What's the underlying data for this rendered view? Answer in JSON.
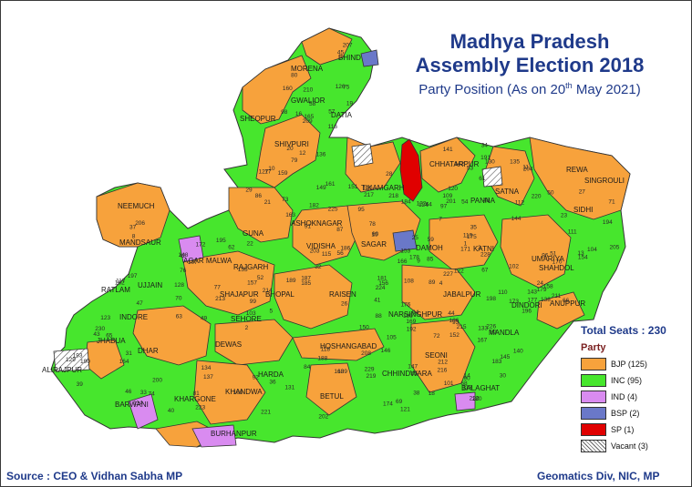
{
  "title": [
    "Madhya Pradesh",
    "Assembly Election 2018"
  ],
  "subtitle_prefix": "Party Position (As on 20",
  "subtitle_sup": "th",
  "subtitle_suffix": " May 2021)",
  "legend": {
    "total": "Total Seats : 230",
    "heading": "Party",
    "items": [
      {
        "label": "BJP (125)",
        "color": "#f7a23c",
        "pattern": false
      },
      {
        "label": "INC (95)",
        "color": "#47e62d",
        "pattern": false
      },
      {
        "label": "IND (4)",
        "color": "#d98bf0",
        "pattern": false
      },
      {
        "label": "BSP (2)",
        "color": "#6a78c8",
        "pattern": false
      },
      {
        "label": "SP  (1)",
        "color": "#e00000",
        "pattern": false
      },
      {
        "label": "Vacant (3)",
        "color": "#ffffff",
        "pattern": true
      }
    ]
  },
  "source": "Source : CEO & Vidhan Sabha MP",
  "credit": "Geomatics Div, NIC, MP",
  "districts": [
    "MORENA",
    "BHIND",
    "GWALIOR",
    "DATIA",
    "SHEOPUR",
    "SHIVPURI",
    "TIKAMGARH",
    "CHHATARPUR",
    "PANNA",
    "SATNA",
    "REWA",
    "SIDHI",
    "SINGROULI",
    "NEEMUCH",
    "MANDSAUR",
    "GUNA",
    "ASHOKNAGAR",
    "VIDISHA",
    "SAGAR",
    "DAMOH",
    "KATNI",
    "UMARIYA",
    "SHAHDOL",
    "ANUPPUR",
    "AGAR MALWA",
    "RAJGARH",
    "RATLAM",
    "UJJAIN",
    "SHAJAPUR",
    "BHOPAL",
    "RAISEN",
    "JABALPUR",
    "DINDORI",
    "JHABUA",
    "INDORE",
    "SEHORE",
    "NARSINGHPUR",
    "MANDLA",
    "DHAR",
    "DEWAS",
    "HOSHANGABAD",
    "SEONI",
    "ALIRAJPUR",
    "HARDA",
    "CHHINDWARA",
    "BALAGHAT",
    "BARWANI",
    "KHARGONE",
    "KHANDWA",
    "BETUL",
    "BURHANPUR"
  ],
  "map_numbers": [
    "1",
    "2",
    "3",
    "4",
    "5",
    "7",
    "8",
    "9",
    "10",
    "11",
    "12",
    "13",
    "14",
    "15",
    "16",
    "17",
    "18",
    "19",
    "20",
    "21",
    "22",
    "23",
    "24",
    "25",
    "26",
    "27",
    "28",
    "29",
    "30",
    "31",
    "32",
    "33",
    "34",
    "35",
    "36",
    "37",
    "38",
    "39",
    "40",
    "41",
    "42",
    "43",
    "44",
    "45",
    "46",
    "47",
    "48",
    "49",
    "50",
    "51",
    "52",
    "53",
    "54",
    "55",
    "56",
    "57",
    "58",
    "59",
    "60",
    "61",
    "62",
    "63",
    "64",
    "65",
    "66",
    "67",
    "68",
    "69",
    "70",
    "71",
    "72",
    "73",
    "74",
    "75",
    "76",
    "77",
    "78",
    "79",
    "80",
    "81",
    "82",
    "84",
    "85",
    "86",
    "87",
    "88",
    "89",
    "90",
    "91",
    "92",
    "93",
    "94",
    "95",
    "96",
    "97",
    "98",
    "99",
    "100",
    "101",
    "102",
    "103",
    "104",
    "105",
    "106",
    "107",
    "108",
    "109",
    "110",
    "111",
    "112",
    "113",
    "114",
    "115",
    "116",
    "117",
    "118",
    "119",
    "120",
    "121",
    "122",
    "123",
    "124",
    "125",
    "126",
    "127",
    "128",
    "129",
    "130",
    "131",
    "132",
    "133",
    "134",
    "135",
    "136",
    "137",
    "138",
    "139",
    "140",
    "141",
    "142",
    "143",
    "144",
    "145",
    "146",
    "147",
    "148",
    "149",
    "150",
    "151",
    "152",
    "153",
    "154",
    "155",
    "156",
    "157",
    "158",
    "159",
    "160",
    "161",
    "162",
    "163",
    "164",
    "165",
    "166",
    "167",
    "168",
    "169",
    "170",
    "171",
    "172",
    "173",
    "174",
    "175",
    "176",
    "177",
    "178",
    "179",
    "180",
    "181",
    "182",
    "183",
    "184",
    "185",
    "186",
    "187",
    "188",
    "189",
    "190",
    "191",
    "192",
    "193",
    "194",
    "195",
    "196",
    "197",
    "198",
    "199",
    "200",
    "201",
    "202",
    "203",
    "204",
    "205",
    "206",
    "207",
    "208",
    "209",
    "210",
    "211",
    "212",
    "213",
    "214",
    "215",
    "216",
    "217",
    "218",
    "219",
    "220",
    "221",
    "222",
    "223",
    "224",
    "225",
    "226",
    "227",
    "228",
    "229",
    "230"
  ]
}
